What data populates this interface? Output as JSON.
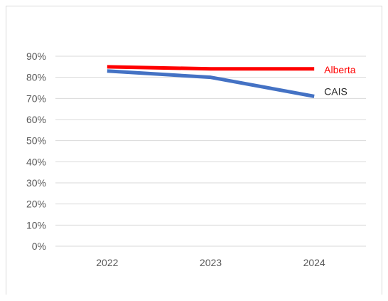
{
  "chart_data": {
    "type": "line",
    "categories": [
      "2022",
      "2023",
      "2024"
    ],
    "ylim": [
      0,
      0.9
    ],
    "yticks": [
      0,
      0.1,
      0.2,
      0.3,
      0.4,
      0.5,
      0.6,
      0.7,
      0.8,
      0.9
    ],
    "ytick_labels": [
      "0%",
      "10%",
      "20%",
      "30%",
      "40%",
      "50%",
      "60%",
      "70%",
      "80%",
      "90%"
    ],
    "grid": true,
    "legend": "inline labels at line ends",
    "series": [
      {
        "name": "Alberta",
        "values": [
          0.85,
          0.84,
          0.84
        ],
        "color": "#ff0000"
      },
      {
        "name": "CAIS",
        "values": [
          0.83,
          0.8,
          0.71
        ],
        "color": "#4472c4"
      }
    ],
    "label_colors": {
      "Alberta": "#ff0000",
      "CAIS": "#262626"
    },
    "gridline_color": "#d9d9d9"
  }
}
